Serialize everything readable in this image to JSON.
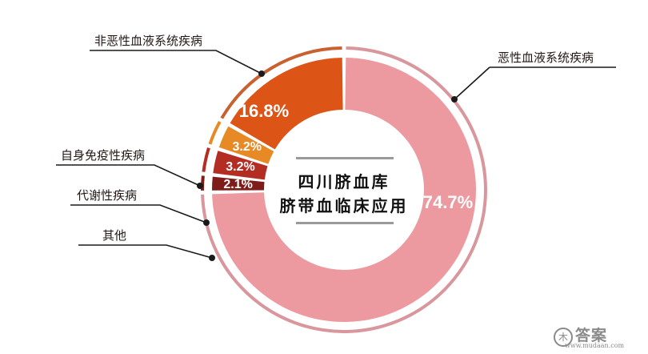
{
  "chart_data": {
    "type": "pie",
    "variant": "donut",
    "title": "四川脐血库 脐带血临床应用",
    "categories": [
      "恶性血液系统疾病",
      "其他",
      "代谢性疾病",
      "自身免疫性疾病",
      "非恶性血液系统疾病"
    ],
    "values": [
      74.7,
      2.1,
      3.2,
      3.2,
      16.8
    ],
    "labels": [
      "74.7%",
      "2.1%",
      "3.2%",
      "3.2%",
      "16.8%"
    ],
    "colors": [
      "#ec9aa0",
      "#7e1c19",
      "#b42d23",
      "#e78a26",
      "#dd5417"
    ],
    "ring_colors": [
      "#d9969c",
      "#7e1c19",
      "#b42d23",
      "#e78a26",
      "#c9602f"
    ],
    "legend_position": "callout-lines"
  },
  "center": {
    "line1": "四川脐血库",
    "line2": "脐带血临床应用"
  },
  "callouts": {
    "malignant": "恶性血液系统疾病",
    "non_malignant": "非恶性血液系统疾病",
    "autoimmune": "自身免疫性疾病",
    "metabolic": "代谢性疾病",
    "other": "其他"
  },
  "watermark": {
    "logo_char": "木",
    "name": "答案",
    "url": "www.mudaan.com"
  }
}
